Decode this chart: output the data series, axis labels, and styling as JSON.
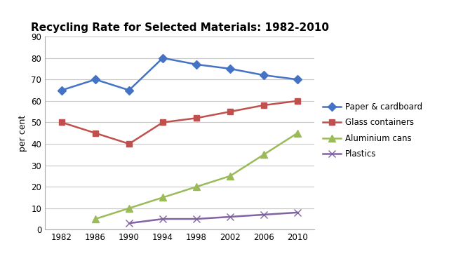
{
  "title": "Recycling Rate for Selected Materials: 1982-2010",
  "ylabel": "per cent",
  "years": [
    1982,
    1986,
    1990,
    1994,
    1998,
    2002,
    2006,
    2010
  ],
  "series": {
    "Paper & cardboard": {
      "values": [
        65,
        70,
        65,
        80,
        77,
        75,
        72,
        70
      ],
      "color": "#4472c4",
      "marker": "D",
      "markersize": 6
    },
    "Glass containers": {
      "values": [
        50,
        45,
        40,
        50,
        52,
        55,
        58,
        60
      ],
      "color": "#c0504d",
      "marker": "s",
      "markersize": 6
    },
    "Aluminium cans": {
      "values": [
        null,
        5,
        10,
        15,
        20,
        25,
        35,
        45
      ],
      "color": "#9bbb59",
      "marker": "^",
      "markersize": 7
    },
    "Plastics": {
      "values": [
        null,
        null,
        3,
        5,
        5,
        6,
        7,
        8
      ],
      "color": "#8064a2",
      "marker": "x",
      "markersize": 7
    }
  },
  "ylim": [
    0,
    90
  ],
  "yticks": [
    0,
    10,
    20,
    30,
    40,
    50,
    60,
    70,
    80,
    90
  ],
  "xlim": [
    1980,
    2012
  ],
  "xticks": [
    1982,
    1986,
    1990,
    1994,
    1998,
    2002,
    2006,
    2010
  ],
  "background_color": "#ffffff",
  "grid_color": "#c8c8c8",
  "title_fontsize": 11,
  "label_fontsize": 9,
  "tick_fontsize": 8.5,
  "legend_fontsize": 8.5,
  "linewidth": 1.8
}
